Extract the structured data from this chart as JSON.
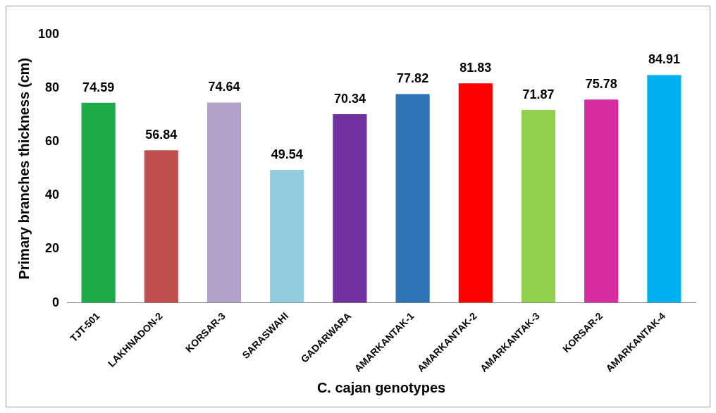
{
  "chart_data": {
    "type": "bar",
    "xlabel": "C. cajan genotypes",
    "ylabel": "Primary branches thickness (cm)",
    "categories": [
      "TJT-501",
      "LAKHNADON-2",
      "KORSAR-3",
      "SARASWAHI",
      "GADARWARA",
      "AMARKANTAK-1",
      "AMARKANTAK-2",
      "AMARKANTAK-3",
      "KORSAR-2",
      "AMARKANTAK-4"
    ],
    "values": [
      74.59,
      56.84,
      74.64,
      49.54,
      70.34,
      77.82,
      81.83,
      71.87,
      75.78,
      84.91
    ],
    "colors": [
      "#1faa4a",
      "#c0504d",
      "#b3a2c7",
      "#93cddd",
      "#7030a0",
      "#2e75b6",
      "#ff0000",
      "#92d050",
      "#d62ca0",
      "#00b0f0"
    ],
    "ylim": [
      0,
      100
    ],
    "yticks": [
      0,
      20,
      40,
      60,
      80,
      100
    ],
    "grid": false,
    "legend": false,
    "data_labels": true
  }
}
